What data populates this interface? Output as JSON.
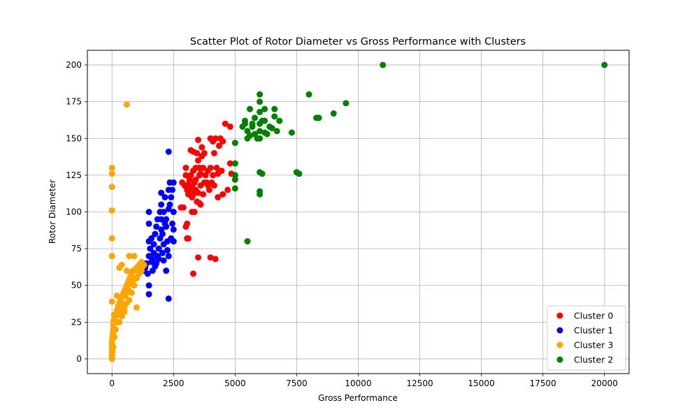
{
  "chart_data": {
    "type": "scatter",
    "title": "Scatter Plot of Rotor Diameter vs Gross Performance with Clusters",
    "xlabel": "Gross Performance",
    "ylabel": "Rotor Diameter",
    "xlim": [
      -1000,
      21000
    ],
    "ylim": [
      -10,
      210
    ],
    "xticks": [
      0,
      2500,
      5000,
      7500,
      10000,
      12500,
      15000,
      17500,
      20000
    ],
    "yticks": [
      0,
      25,
      50,
      75,
      100,
      125,
      150,
      175,
      200
    ],
    "grid": true,
    "legend_position": "bottom-right",
    "series": [
      {
        "name": "Cluster 0",
        "color": "#ff0000",
        "points": [
          [
            2800,
            103
          ],
          [
            2900,
            103
          ],
          [
            2850,
            120
          ],
          [
            2950,
            118
          ],
          [
            3000,
            125
          ],
          [
            3000,
            130
          ],
          [
            3050,
            115
          ],
          [
            3050,
            82
          ],
          [
            3100,
            82
          ],
          [
            3000,
            90
          ],
          [
            3050,
            92
          ],
          [
            3100,
            112
          ],
          [
            3150,
            122
          ],
          [
            3200,
            142
          ],
          [
            3200,
            125
          ],
          [
            3250,
            110
          ],
          [
            3300,
            128
          ],
          [
            3300,
            141
          ],
          [
            3350,
            120
          ],
          [
            3400,
            130
          ],
          [
            3400,
            115
          ],
          [
            3450,
            140
          ],
          [
            3500,
            149
          ],
          [
            3500,
            135
          ],
          [
            3550,
            125
          ],
          [
            3600,
            118
          ],
          [
            3600,
            105
          ],
          [
            3650,
            138
          ],
          [
            3700,
            130
          ],
          [
            3700,
            112
          ],
          [
            3750,
            140
          ],
          [
            3800,
            125
          ],
          [
            3850,
            120
          ],
          [
            3900,
            128
          ],
          [
            3950,
            115
          ],
          [
            4000,
            150
          ],
          [
            4000,
            130
          ],
          [
            4050,
            120
          ],
          [
            4100,
            148
          ],
          [
            4100,
            125
          ],
          [
            4150,
            118
          ],
          [
            4200,
            150
          ],
          [
            4250,
            130
          ],
          [
            4300,
            110
          ],
          [
            4350,
            145
          ],
          [
            4400,
            150
          ],
          [
            4450,
            128
          ],
          [
            4500,
            112
          ],
          [
            4500,
            148
          ],
          [
            4600,
            160
          ],
          [
            4700,
            115
          ],
          [
            4800,
            158
          ],
          [
            4800,
            133
          ],
          [
            4850,
            126
          ],
          [
            3500,
            69
          ],
          [
            4000,
            69
          ],
          [
            4200,
            68
          ],
          [
            3300,
            58
          ],
          [
            3250,
            100
          ],
          [
            3350,
            100
          ],
          [
            3450,
            107
          ],
          [
            3550,
            106
          ],
          [
            3150,
            116
          ],
          [
            3250,
            117
          ],
          [
            3400,
            122
          ],
          [
            3600,
            126
          ],
          [
            3650,
            144
          ],
          [
            3750,
            120
          ],
          [
            3300,
            112
          ],
          [
            3200,
            113
          ],
          [
            3100,
            119
          ],
          [
            3500,
            113
          ],
          [
            3550,
            130
          ],
          [
            3900,
            118
          ],
          [
            4150,
            140
          ],
          [
            4300,
            126
          ]
        ]
      },
      {
        "name": "Cluster 1",
        "color": "#0000ff",
        "points": [
          [
            1300,
            60
          ],
          [
            1350,
            62
          ],
          [
            1400,
            65
          ],
          [
            1500,
            70
          ],
          [
            1500,
            80
          ],
          [
            1500,
            92
          ],
          [
            1500,
            100
          ],
          [
            1500,
            50
          ],
          [
            1500,
            44
          ],
          [
            1550,
            75
          ],
          [
            1600,
            82
          ],
          [
            1650,
            68
          ],
          [
            1700,
            72
          ],
          [
            1700,
            78
          ],
          [
            1750,
            85
          ],
          [
            1800,
            65
          ],
          [
            1800,
            90
          ],
          [
            1850,
            70
          ],
          [
            1900,
            75
          ],
          [
            1950,
            82
          ],
          [
            2000,
            88
          ],
          [
            2000,
            95
          ],
          [
            2000,
            105
          ],
          [
            2000,
            113
          ],
          [
            2050,
            72
          ],
          [
            2100,
            78
          ],
          [
            2100,
            100
          ],
          [
            2150,
            110
          ],
          [
            2200,
            90
          ],
          [
            2200,
            95
          ],
          [
            2250,
            80
          ],
          [
            2300,
            115
          ],
          [
            2300,
            102
          ],
          [
            2300,
            70
          ],
          [
            2300,
            141
          ],
          [
            2300,
            41
          ],
          [
            2350,
            120
          ],
          [
            2400,
            110
          ],
          [
            2400,
            82
          ],
          [
            2450,
            92
          ],
          [
            2500,
            120
          ],
          [
            2500,
            80
          ],
          [
            2500,
            100
          ],
          [
            1650,
            60
          ],
          [
            1750,
            63
          ],
          [
            1900,
            68
          ],
          [
            2100,
            67
          ],
          [
            2200,
            60
          ],
          [
            1450,
            58
          ],
          [
            1600,
            66
          ],
          [
            1850,
            95
          ],
          [
            1950,
            100
          ],
          [
            2050,
            85
          ],
          [
            2150,
            92
          ],
          [
            2250,
            74
          ],
          [
            2350,
            105
          ],
          [
            2450,
            115
          ],
          [
            2500,
            88
          ]
        ]
      },
      {
        "name": "Cluster 3",
        "color": "#ffa500",
        "points": [
          [
            0,
            0
          ],
          [
            0,
            2
          ],
          [
            0,
            4
          ],
          [
            0,
            6
          ],
          [
            0,
            8
          ],
          [
            0,
            10
          ],
          [
            0,
            12
          ],
          [
            20,
            14
          ],
          [
            30,
            16
          ],
          [
            40,
            18
          ],
          [
            50,
            20
          ],
          [
            50,
            23
          ],
          [
            60,
            26
          ],
          [
            80,
            30
          ],
          [
            100,
            28
          ],
          [
            150,
            30
          ],
          [
            200,
            33
          ],
          [
            250,
            36
          ],
          [
            300,
            38
          ],
          [
            350,
            40
          ],
          [
            400,
            42
          ],
          [
            450,
            44
          ],
          [
            500,
            46
          ],
          [
            550,
            48
          ],
          [
            600,
            50
          ],
          [
            650,
            52
          ],
          [
            700,
            54
          ],
          [
            750,
            56
          ],
          [
            800,
            58
          ],
          [
            850,
            60
          ],
          [
            900,
            55
          ],
          [
            950,
            60
          ],
          [
            1000,
            62
          ],
          [
            1100,
            64
          ],
          [
            1200,
            66
          ],
          [
            1250,
            63
          ],
          [
            300,
            62
          ],
          [
            400,
            64
          ],
          [
            600,
            60
          ],
          [
            700,
            70
          ],
          [
            900,
            70
          ],
          [
            1000,
            35
          ],
          [
            700,
            40
          ],
          [
            500,
            35
          ],
          [
            300,
            25
          ],
          [
            200,
            43
          ],
          [
            0,
            39
          ],
          [
            0,
            70
          ],
          [
            0,
            82
          ],
          [
            0,
            101
          ],
          [
            0,
            117
          ],
          [
            0,
            126
          ],
          [
            0,
            130
          ],
          [
            600,
            173
          ],
          [
            250,
            30
          ],
          [
            350,
            34
          ],
          [
            450,
            37
          ],
          [
            550,
            43
          ],
          [
            650,
            47
          ],
          [
            750,
            51
          ],
          [
            850,
            53
          ],
          [
            400,
            29
          ],
          [
            500,
            32
          ],
          [
            600,
            38
          ],
          [
            800,
            45
          ],
          [
            1100,
            58
          ],
          [
            1200,
            60
          ],
          [
            1300,
            64
          ],
          [
            150,
            20
          ],
          [
            100,
            15
          ],
          [
            50,
            8
          ],
          [
            20,
            5
          ],
          [
            250,
            25
          ],
          [
            350,
            32
          ],
          [
            700,
            46
          ],
          [
            900,
            50
          ],
          [
            1000,
            55
          ]
        ]
      },
      {
        "name": "Cluster 2",
        "color": "#008000",
        "points": [
          [
            5000,
            147
          ],
          [
            5000,
            133
          ],
          [
            5000,
            125
          ],
          [
            5000,
            122
          ],
          [
            5000,
            116
          ],
          [
            5500,
            80
          ],
          [
            5300,
            158
          ],
          [
            5400,
            162
          ],
          [
            5500,
            155
          ],
          [
            5500,
            150
          ],
          [
            5600,
            152
          ],
          [
            5600,
            170
          ],
          [
            5700,
            160
          ],
          [
            5800,
            164
          ],
          [
            6000,
            180
          ],
          [
            6000,
            175
          ],
          [
            6000,
            168
          ],
          [
            6000,
            160
          ],
          [
            6000,
            155
          ],
          [
            6000,
            150
          ],
          [
            6000,
            127
          ],
          [
            6000,
            114
          ],
          [
            6000,
            112
          ],
          [
            6100,
            126
          ],
          [
            6100,
            162
          ],
          [
            6200,
            154
          ],
          [
            6200,
            170
          ],
          [
            6300,
            153
          ],
          [
            6500,
            157
          ],
          [
            6600,
            165
          ],
          [
            6600,
            170
          ],
          [
            6700,
            155
          ],
          [
            6800,
            162
          ],
          [
            7300,
            154
          ],
          [
            7500,
            127
          ],
          [
            7600,
            126
          ],
          [
            8000,
            180
          ],
          [
            8300,
            164
          ],
          [
            8400,
            164
          ],
          [
            9000,
            167
          ],
          [
            9500,
            174
          ],
          [
            11000,
            200
          ],
          [
            20000,
            200
          ],
          [
            5900,
            150
          ],
          [
            5700,
            158
          ],
          [
            6400,
            158
          ],
          [
            5800,
            153
          ],
          [
            6200,
            162
          ],
          [
            5400,
            160
          ]
        ]
      }
    ]
  }
}
